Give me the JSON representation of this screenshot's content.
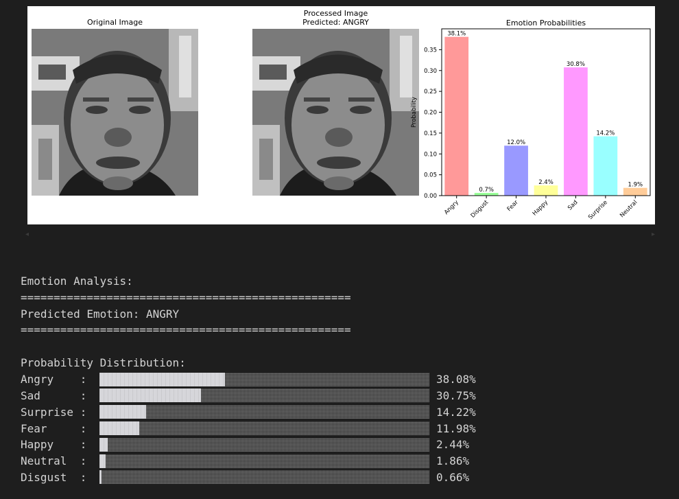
{
  "figure": {
    "original_title": "Original Image",
    "processed_title_line1": "Processed Image",
    "processed_title_line2": "Predicted: ANGRY"
  },
  "chart_data": {
    "type": "bar",
    "title": "Emotion Probabilities",
    "xlabel": "",
    "ylabel": "Probability",
    "categories": [
      "Angry",
      "Disgust",
      "Fear",
      "Happy",
      "Sad",
      "Surprise",
      "Neutral"
    ],
    "values": [
      0.3808,
      0.0066,
      0.1198,
      0.0244,
      0.3075,
      0.1422,
      0.0186
    ],
    "data_labels": [
      "38.1%",
      "0.7%",
      "12.0%",
      "2.4%",
      "30.8%",
      "14.2%",
      "1.9%"
    ],
    "colors": [
      "#ff9999",
      "#99ff99",
      "#9999ff",
      "#ffff99",
      "#ff99ff",
      "#99ffff",
      "#ffcc99"
    ],
    "ylim": [
      0,
      0.4
    ],
    "yticks": [
      "0.00",
      "0.05",
      "0.10",
      "0.15",
      "0.20",
      "0.25",
      "0.30",
      "0.35"
    ],
    "grid": false,
    "legend": "none"
  },
  "console": {
    "heading": "Emotion Analysis:",
    "separator": "==================================================",
    "predicted": "Predicted Emotion: ANGRY",
    "dist_heading": "Probability Distribution:",
    "distribution": [
      {
        "label": "Angry",
        "value": 0.3808,
        "text": "38.08%"
      },
      {
        "label": "Sad",
        "value": 0.3075,
        "text": "30.75%"
      },
      {
        "label": "Surprise",
        "value": 0.1422,
        "text": "14.22%"
      },
      {
        "label": "Fear",
        "value": 0.1198,
        "text": "11.98%"
      },
      {
        "label": "Happy",
        "value": 0.0244,
        "text": "2.44%"
      },
      {
        "label": "Neutral",
        "value": 0.0186,
        "text": "1.86%"
      },
      {
        "label": "Disgust",
        "value": 0.0066,
        "text": "0.66%"
      }
    ]
  }
}
